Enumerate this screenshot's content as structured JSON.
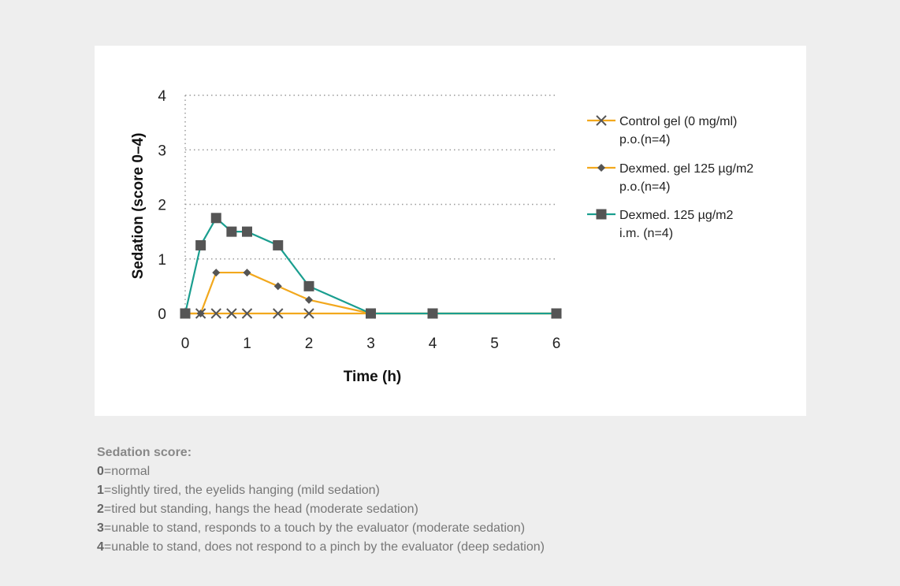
{
  "chart_data": {
    "type": "line",
    "xlabel": "Time (h)",
    "ylabel": "Sedation (score 0–4)",
    "x_ticks": [
      0,
      1,
      2,
      3,
      4,
      5,
      6
    ],
    "y_ticks": [
      0,
      1,
      2,
      3,
      4
    ],
    "xlim": [
      0,
      6
    ],
    "ylim": [
      0,
      4
    ],
    "grid": "horizontal dotted",
    "legend_position": "right",
    "series": [
      {
        "name": "Control gel (0 mg/ml)",
        "name_line2": "p.o.(n=4)",
        "marker": "x",
        "color": "#f2a81d",
        "marker_color": "#555555",
        "x": [
          0,
          0.25,
          0.5,
          0.75,
          1,
          1.5,
          2,
          3,
          4,
          6
        ],
        "y": [
          0,
          0,
          0,
          0,
          0,
          0,
          0,
          0,
          0,
          0
        ]
      },
      {
        "name": "Dexmed. gel 125 µg/m2",
        "name_line2": "p.o.(n=4)",
        "marker": "diamond",
        "color": "#f2a81d",
        "marker_color": "#555555",
        "x": [
          0,
          0.25,
          0.5,
          1,
          1.5,
          2,
          3,
          4,
          6
        ],
        "y": [
          0,
          0,
          0.75,
          0.75,
          0.5,
          0.25,
          0,
          0,
          0
        ]
      },
      {
        "name": "Dexmed. 125 µg/m2",
        "name_line2": "i.m. (n=4)",
        "marker": "square",
        "color": "#1a9e8f",
        "marker_color": "#555555",
        "x": [
          0,
          0.25,
          0.5,
          0.75,
          1,
          1.5,
          2,
          3,
          4,
          6
        ],
        "y": [
          0,
          1.25,
          1.75,
          1.5,
          1.5,
          1.25,
          0.5,
          0,
          0,
          0
        ]
      }
    ]
  },
  "notes": {
    "title": "Sedation score:",
    "items": [
      {
        "num": "0",
        "text": "=normal"
      },
      {
        "num": "1",
        "text": "=slightly tired, the eyelids hanging (mild sedation)"
      },
      {
        "num": "2",
        "text": "=tired but standing, hangs the head (moderate sedation)"
      },
      {
        "num": "3",
        "text": "=unable to stand, responds to a touch by the evaluator (moderate sedation)"
      },
      {
        "num": "4",
        "text": "=unable to stand, does not respond to a pinch by the evaluator (deep sedation)"
      }
    ]
  }
}
